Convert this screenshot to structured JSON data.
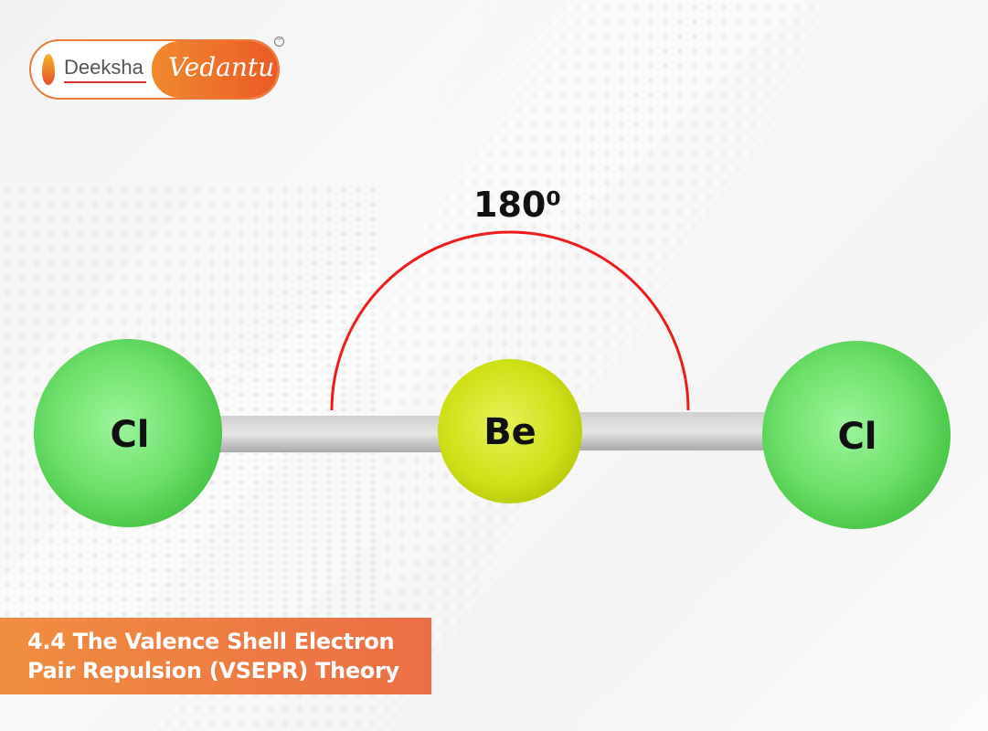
{
  "logo": {
    "left_text": "Deeksha",
    "right_text": "Vedantu",
    "tm": "TM"
  },
  "diagram": {
    "angle_label": "180⁰",
    "atoms": [
      {
        "symbol": "Cl",
        "color": "#5fd65f"
      },
      {
        "symbol": "Be",
        "color": "#c8dc14"
      },
      {
        "symbol": "Cl",
        "color": "#5fd65f"
      }
    ],
    "arc_color": "#ee1c1c",
    "bond_color": "#bcbcbc"
  },
  "banner": {
    "line1": "4.4 The Valence Shell Electron",
    "line2": "Pair Repulsion (VSEPR) Theory",
    "color": "#ef7a42"
  }
}
